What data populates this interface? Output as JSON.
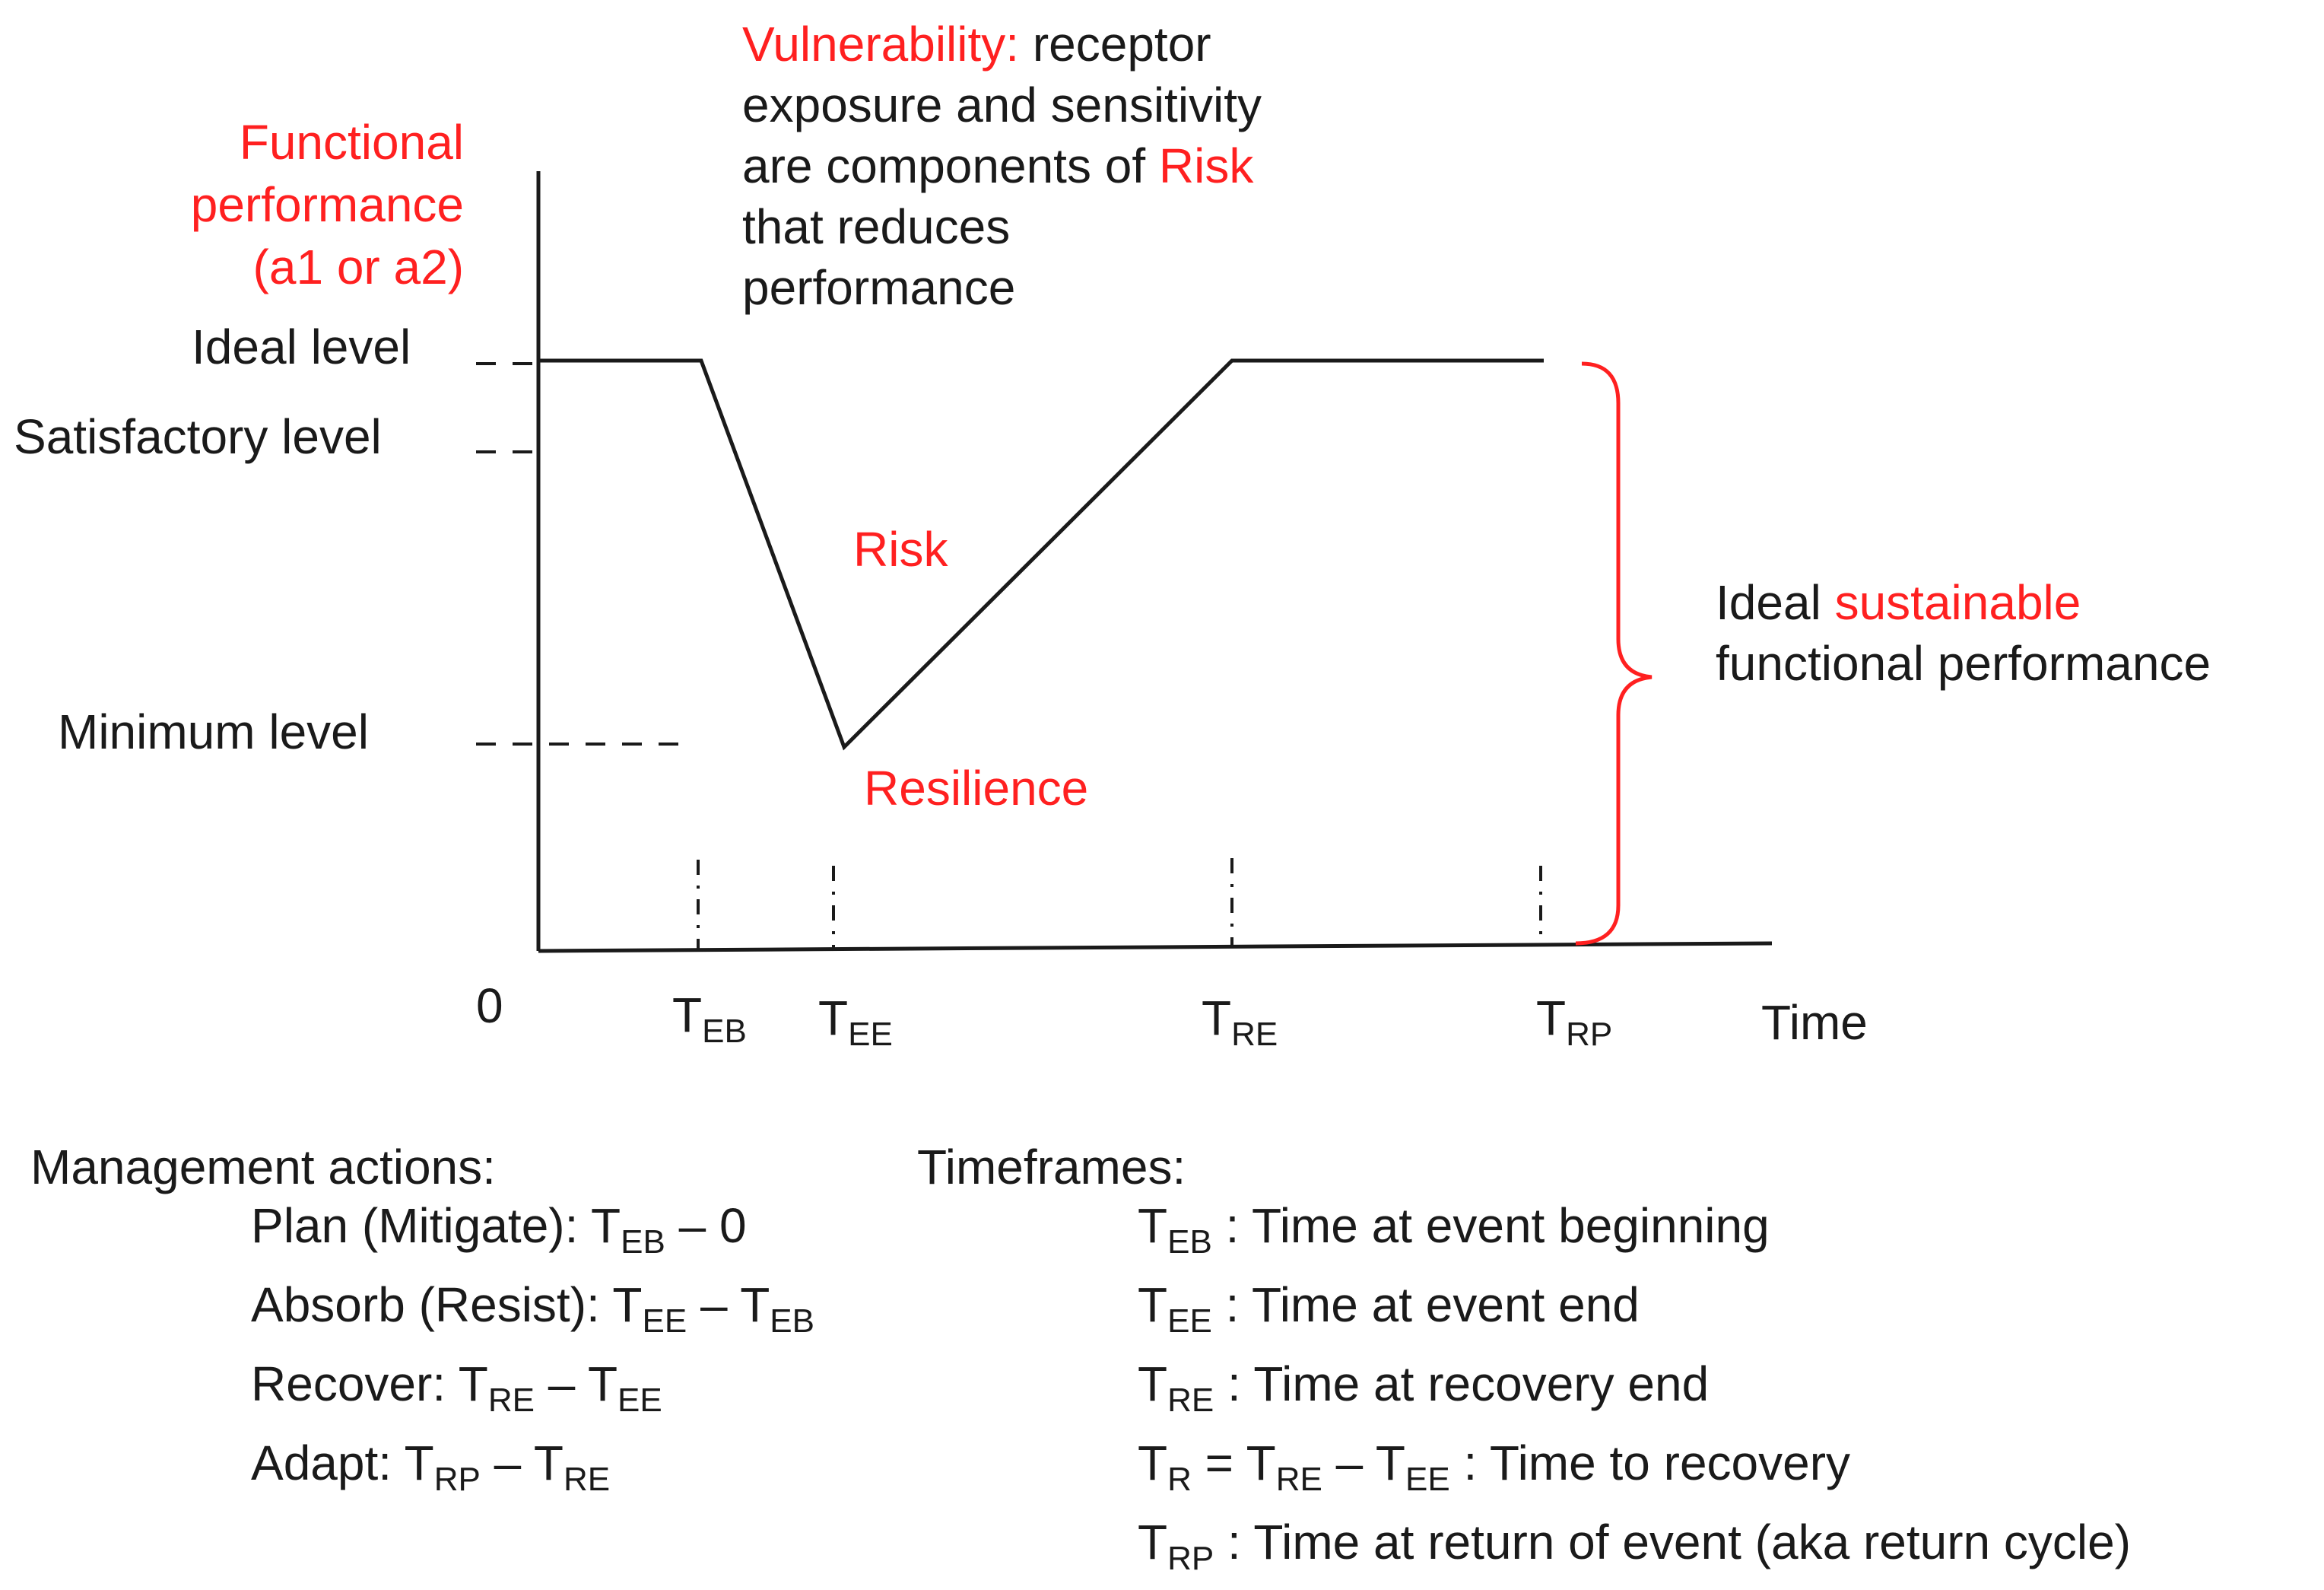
{
  "colors": {
    "accent_red": "#ff2020",
    "line": "#1a1a1a",
    "background": "#ffffff"
  },
  "y_axis": {
    "label_lines": [
      "Functional",
      "performance",
      "(a1 or a2)"
    ],
    "origin": "0",
    "levels": {
      "ideal": "Ideal level",
      "satisfactory": "Satisfactory level",
      "minimum": "Minimum level"
    }
  },
  "x_axis": {
    "label": "Time",
    "ticks": [
      {
        "main": "T",
        "sub": "EB"
      },
      {
        "main": "T",
        "sub": "EE"
      },
      {
        "main": "T",
        "sub": "RE"
      },
      {
        "main": "T",
        "sub": "RP"
      }
    ]
  },
  "vulnerability": {
    "term": "Vulnerability:",
    "line1_rest": " receptor",
    "line2": "exposure and sensitivity",
    "line3_pre": "are components of ",
    "line3_term": "Risk",
    "line4": "that reduces",
    "line5": "performance"
  },
  "curve_labels": {
    "risk": "Risk",
    "resilience": "Resilience"
  },
  "brace_label": {
    "pre": "Ideal ",
    "term": "sustainable",
    "line2": "functional performance"
  },
  "management": {
    "title": "Management  actions:",
    "items": [
      {
        "label": "Plan (Mitigate): ",
        "expr": [
          {
            "t": "T"
          },
          {
            "s": "EB"
          },
          {
            "t": " – 0"
          }
        ]
      },
      {
        "label": "Absorb (Resist): ",
        "expr": [
          {
            "t": "T"
          },
          {
            "s": "EE"
          },
          {
            "t": " – T"
          },
          {
            "s": "EB"
          }
        ]
      },
      {
        "label": "Recover: ",
        "expr": [
          {
            "t": "T"
          },
          {
            "s": "RE"
          },
          {
            "t": " – T"
          },
          {
            "s": "EE"
          }
        ]
      },
      {
        "label": "Adapt: ",
        "expr": [
          {
            "t": "T"
          },
          {
            "s": "RP"
          },
          {
            "t": " – T"
          },
          {
            "s": "RE"
          }
        ]
      }
    ]
  },
  "timeframes": {
    "title": "Timeframes:",
    "items": [
      {
        "expr": [
          {
            "t": "T"
          },
          {
            "s": "EB"
          }
        ],
        "desc": " : Time at event  beginning"
      },
      {
        "expr": [
          {
            "t": "T"
          },
          {
            "s": "EE"
          }
        ],
        "desc": " : Time at event  end"
      },
      {
        "expr": [
          {
            "t": "T"
          },
          {
            "s": "RE"
          }
        ],
        "desc": " : Time at recovery end"
      },
      {
        "expr": [
          {
            "t": "T"
          },
          {
            "s": "R"
          },
          {
            "t": " = T"
          },
          {
            "s": "RE"
          },
          {
            "t": " – T"
          },
          {
            "s": "EE"
          }
        ],
        "desc": "  : Time to recovery"
      },
      {
        "expr": [
          {
            "t": "T"
          },
          {
            "s": "RP"
          }
        ],
        "desc": " : Time at return  of event  (aka return  cycle)"
      }
    ]
  }
}
